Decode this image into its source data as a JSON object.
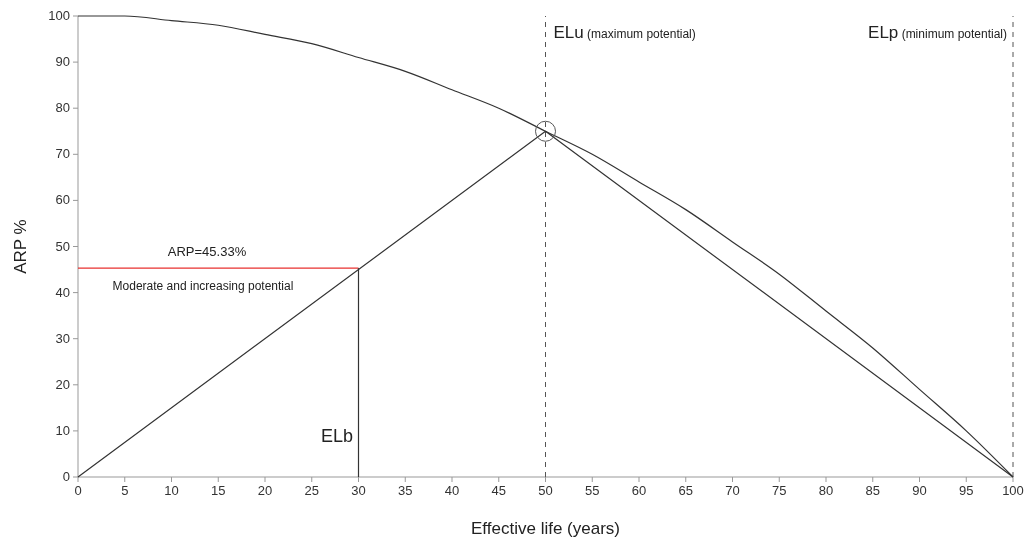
{
  "chart_data": {
    "type": "line",
    "xlabel": "Effective life (years)",
    "ylabel": "ARP %",
    "xlim": [
      0,
      100
    ],
    "ylim": [
      0,
      100
    ],
    "xticks": [
      0,
      5,
      10,
      15,
      20,
      25,
      30,
      35,
      40,
      45,
      50,
      55,
      60,
      65,
      70,
      75,
      80,
      85,
      90,
      95,
      100
    ],
    "yticks": [
      0,
      10,
      20,
      30,
      40,
      50,
      60,
      70,
      80,
      90,
      100
    ],
    "grid": false,
    "series": [
      {
        "color": "#333333",
        "x": [
          0,
          5,
          10,
          15,
          20,
          25,
          30,
          35,
          40,
          45,
          50,
          55,
          60,
          65,
          70,
          75,
          80,
          85,
          90,
          95,
          100
        ],
        "values": [
          100,
          100,
          99,
          98,
          96,
          94,
          91,
          88,
          84,
          80,
          75,
          70,
          64,
          58,
          51,
          44,
          36,
          28,
          19,
          10,
          0
        ]
      },
      {
        "color": "#333333",
        "x": [
          0,
          50,
          100
        ],
        "values": [
          0,
          75,
          0
        ]
      },
      {
        "color": "#e8312f",
        "x": [
          0,
          30
        ],
        "values": [
          45.3,
          45.3
        ]
      },
      {
        "color": "#333333",
        "x": [
          30,
          30
        ],
        "values": [
          0,
          45.3
        ]
      },
      {
        "type": "scatter",
        "color": "#555555",
        "marker": "circle",
        "x": [
          50
        ],
        "values": [
          75
        ]
      }
    ],
    "ref_lines": [
      {
        "axis": "x",
        "value": 50,
        "label": "ELu (maximum potential)",
        "line_style": "dashed",
        "color": "#555555"
      },
      {
        "axis": "x",
        "value": 100,
        "label": "ELp (minimum potential)",
        "line_style": "dashed",
        "color": "#555555"
      }
    ],
    "annotations": [
      "ARP=45.33%",
      "Moderate and increasing potential",
      "ELb"
    ]
  }
}
